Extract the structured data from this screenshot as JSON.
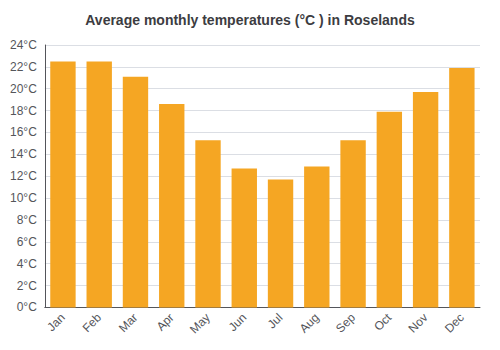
{
  "chart_data": {
    "type": "bar",
    "title": "Average monthly temperatures (°C ) in Roselands",
    "categories": [
      "Jan",
      "Feb",
      "Mar",
      "Apr",
      "May",
      "Jun",
      "Jul",
      "Aug",
      "Sep",
      "Oct",
      "Nov",
      "Dec"
    ],
    "values": [
      22.5,
      22.5,
      21.1,
      18.6,
      15.3,
      12.7,
      11.7,
      12.9,
      15.3,
      17.9,
      19.7,
      21.9
    ],
    "color": "#F5A623",
    "ylim": [
      0,
      24
    ],
    "yticks": [
      {
        "value": 0,
        "label": "0°C"
      },
      {
        "value": 2,
        "label": "2°C"
      },
      {
        "value": 4,
        "label": "4°C"
      },
      {
        "value": 6,
        "label": "6°C"
      },
      {
        "value": 8,
        "label": "8°C"
      },
      {
        "value": 10,
        "label": "10°C"
      },
      {
        "value": 12,
        "label": "12°C"
      },
      {
        "value": 14,
        "label": "14°C"
      },
      {
        "value": 16,
        "label": "16°C"
      },
      {
        "value": 18,
        "label": "18°C"
      },
      {
        "value": 20,
        "label": "20°C"
      },
      {
        "value": 22,
        "label": "22°C"
      },
      {
        "value": 24,
        "label": "24°C"
      }
    ],
    "grid": true
  }
}
